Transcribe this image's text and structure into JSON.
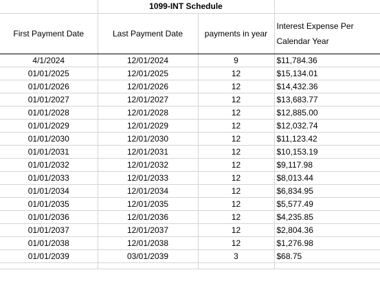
{
  "title": "1099-INT Schedule",
  "headers": {
    "first_payment_date": "First Payment Date",
    "last_payment_date": "Last Payment Date",
    "payments_in_year": "payments in year",
    "interest_expense": "Interest Expense Per Calendar Year"
  },
  "rows": [
    {
      "first": "4/1/2024",
      "last": "12/01/2024",
      "payments": "9",
      "interest": "$11,784.36"
    },
    {
      "first": "01/01/2025",
      "last": "12/01/2025",
      "payments": "12",
      "interest": "$15,134.01"
    },
    {
      "first": "01/01/2026",
      "last": "12/01/2026",
      "payments": "12",
      "interest": "$14,432.36"
    },
    {
      "first": "01/01/2027",
      "last": "12/01/2027",
      "payments": "12",
      "interest": "$13,683.77"
    },
    {
      "first": "01/01/2028",
      "last": "12/01/2028",
      "payments": "12",
      "interest": "$12,885.00"
    },
    {
      "first": "01/01/2029",
      "last": "12/01/2029",
      "payments": "12",
      "interest": "$12,032.74"
    },
    {
      "first": "01/01/2030",
      "last": "12/01/2030",
      "payments": "12",
      "interest": "$11,123.42"
    },
    {
      "first": "01/01/2031",
      "last": "12/01/2031",
      "payments": "12",
      "interest": "$10,153.19"
    },
    {
      "first": "01/01/2032",
      "last": "12/01/2032",
      "payments": "12",
      "interest": "$9,117.98"
    },
    {
      "first": "01/01/2033",
      "last": "12/01/2033",
      "payments": "12",
      "interest": "$8,013.44"
    },
    {
      "first": "01/01/2034",
      "last": "12/01/2034",
      "payments": "12",
      "interest": "$6,834.95"
    },
    {
      "first": "01/01/2035",
      "last": "12/01/2035",
      "payments": "12",
      "interest": "$5,577.49"
    },
    {
      "first": "01/01/2036",
      "last": "12/01/2036",
      "payments": "12",
      "interest": "$4,235.85"
    },
    {
      "first": "01/01/2037",
      "last": "12/01/2037",
      "payments": "12",
      "interest": "$2,804.36"
    },
    {
      "first": "01/01/2038",
      "last": "12/01/2038",
      "payments": "12",
      "interest": "$1,276.98"
    },
    {
      "first": "01/01/2039",
      "last": "03/01/2039",
      "payments": "3",
      "interest": "$68.75"
    }
  ]
}
